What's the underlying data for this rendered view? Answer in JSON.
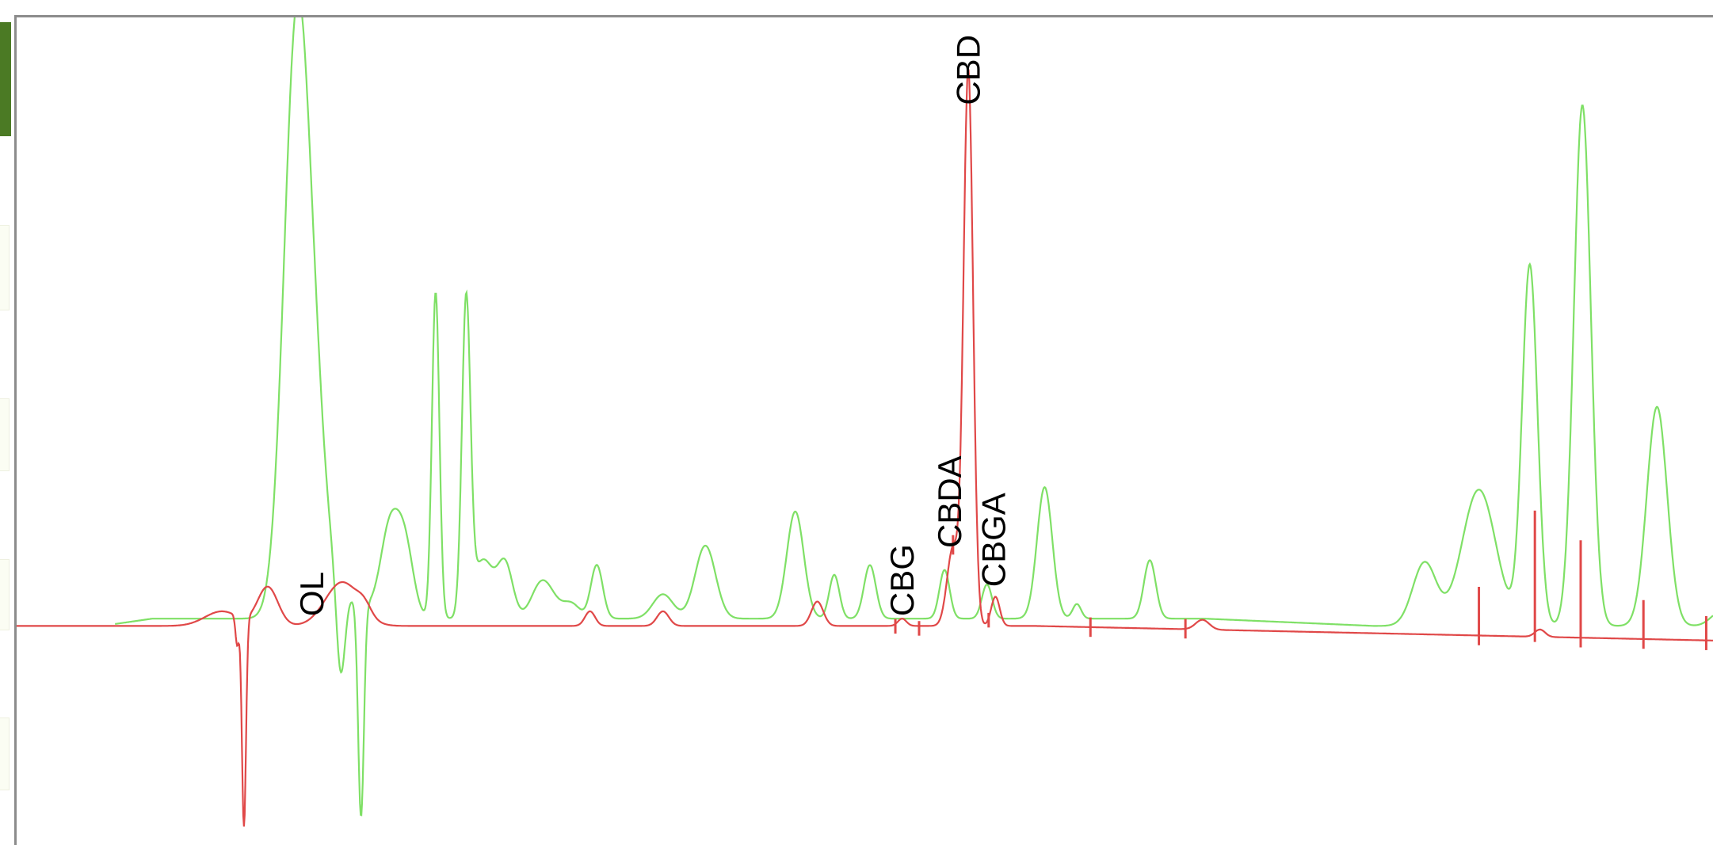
{
  "window": {
    "tab_color": "#4b7a24"
  },
  "chart_data": {
    "type": "line",
    "title": "",
    "xlabel": "",
    "ylabel": "",
    "grid": false,
    "legend": "none",
    "xlim": [
      0,
      100
    ],
    "ylim": [
      -45,
      125
    ],
    "series": [
      {
        "color": "#7fe066",
        "peaks": [
          [
            16.5,
            118,
            0.75
          ],
          [
            17.6,
            30,
            0.7
          ],
          [
            19.5,
            4,
            1.2
          ],
          [
            22.0,
            18,
            0.55
          ],
          [
            22.9,
            14,
            0.5
          ],
          [
            24.7,
            67,
            0.22
          ],
          [
            26.5,
            64,
            0.25
          ],
          [
            27.5,
            12,
            0.6
          ],
          [
            28.8,
            11,
            0.45
          ],
          [
            30.8,
            5,
            0.55
          ],
          [
            31.4,
            4,
            0.6
          ],
          [
            32.7,
            3,
            0.5
          ],
          [
            34.2,
            11,
            0.35
          ],
          [
            38.1,
            5,
            0.6
          ],
          [
            40.6,
            15,
            0.6
          ],
          [
            45.9,
            22,
            0.5
          ],
          [
            48.2,
            9,
            0.3
          ],
          [
            50.3,
            11,
            0.35
          ],
          [
            54.7,
            10,
            0.3
          ],
          [
            57.2,
            7,
            0.3
          ],
          [
            60.6,
            27,
            0.45
          ],
          [
            62.5,
            3,
            0.25
          ],
          [
            66.8,
            12,
            0.35
          ],
          [
            83.0,
            13,
            0.7
          ],
          [
            86.2,
            28,
            1.0
          ],
          [
            89.2,
            74,
            0.45
          ],
          [
            92.3,
            107,
            0.5
          ],
          [
            96.7,
            45,
            0.6
          ],
          [
            100.5,
            3,
            0.6
          ]
        ],
        "dips": [
          [
            19.1,
            -18,
            0.25
          ],
          [
            20.3,
            -44,
            0.17
          ]
        ],
        "baseline_offset": 1.5
      },
      {
        "color": "#e04848",
        "peaks": [
          [
            12.1,
            3,
            1.0
          ],
          [
            14.8,
            8,
            0.6
          ],
          [
            19.2,
            9,
            1.0
          ],
          [
            20.5,
            2,
            0.4
          ],
          [
            33.8,
            3,
            0.3
          ],
          [
            38.1,
            3,
            0.35
          ],
          [
            47.2,
            5,
            0.35
          ],
          [
            52.2,
            1.5,
            0.25
          ],
          [
            55.2,
            16,
            0.35
          ],
          [
            56.1,
            114,
            0.28
          ],
          [
            57.7,
            6,
            0.25
          ],
          [
            69.9,
            2,
            0.4
          ],
          [
            89.8,
            1.5,
            0.3
          ]
        ],
        "dips": [
          [
            13.4,
            -43,
            0.12
          ],
          [
            13.0,
            -6,
            0.1
          ]
        ],
        "baseline_drift": -3
      }
    ],
    "integration_marks": [
      [
        51.8,
        1
      ],
      [
        53.2,
        1
      ],
      [
        55.2,
        2
      ],
      [
        57.3,
        1
      ],
      [
        63.3,
        2
      ],
      [
        68.9,
        2
      ],
      [
        86.2,
        10
      ],
      [
        89.5,
        25
      ],
      [
        92.2,
        20
      ],
      [
        95.9,
        8
      ],
      [
        99.6,
        5
      ]
    ],
    "annotations": [
      {
        "text": "CBD",
        "x": 56.1,
        "y": 107
      },
      {
        "text": "CBDA",
        "x": 55.0,
        "y": 16
      },
      {
        "text": "CBGA",
        "x": 57.6,
        "y": 8
      },
      {
        "text": "CBG",
        "x": 52.2,
        "y": 2
      },
      {
        "text": "OL",
        "x": 17.4,
        "y": 2
      }
    ]
  }
}
